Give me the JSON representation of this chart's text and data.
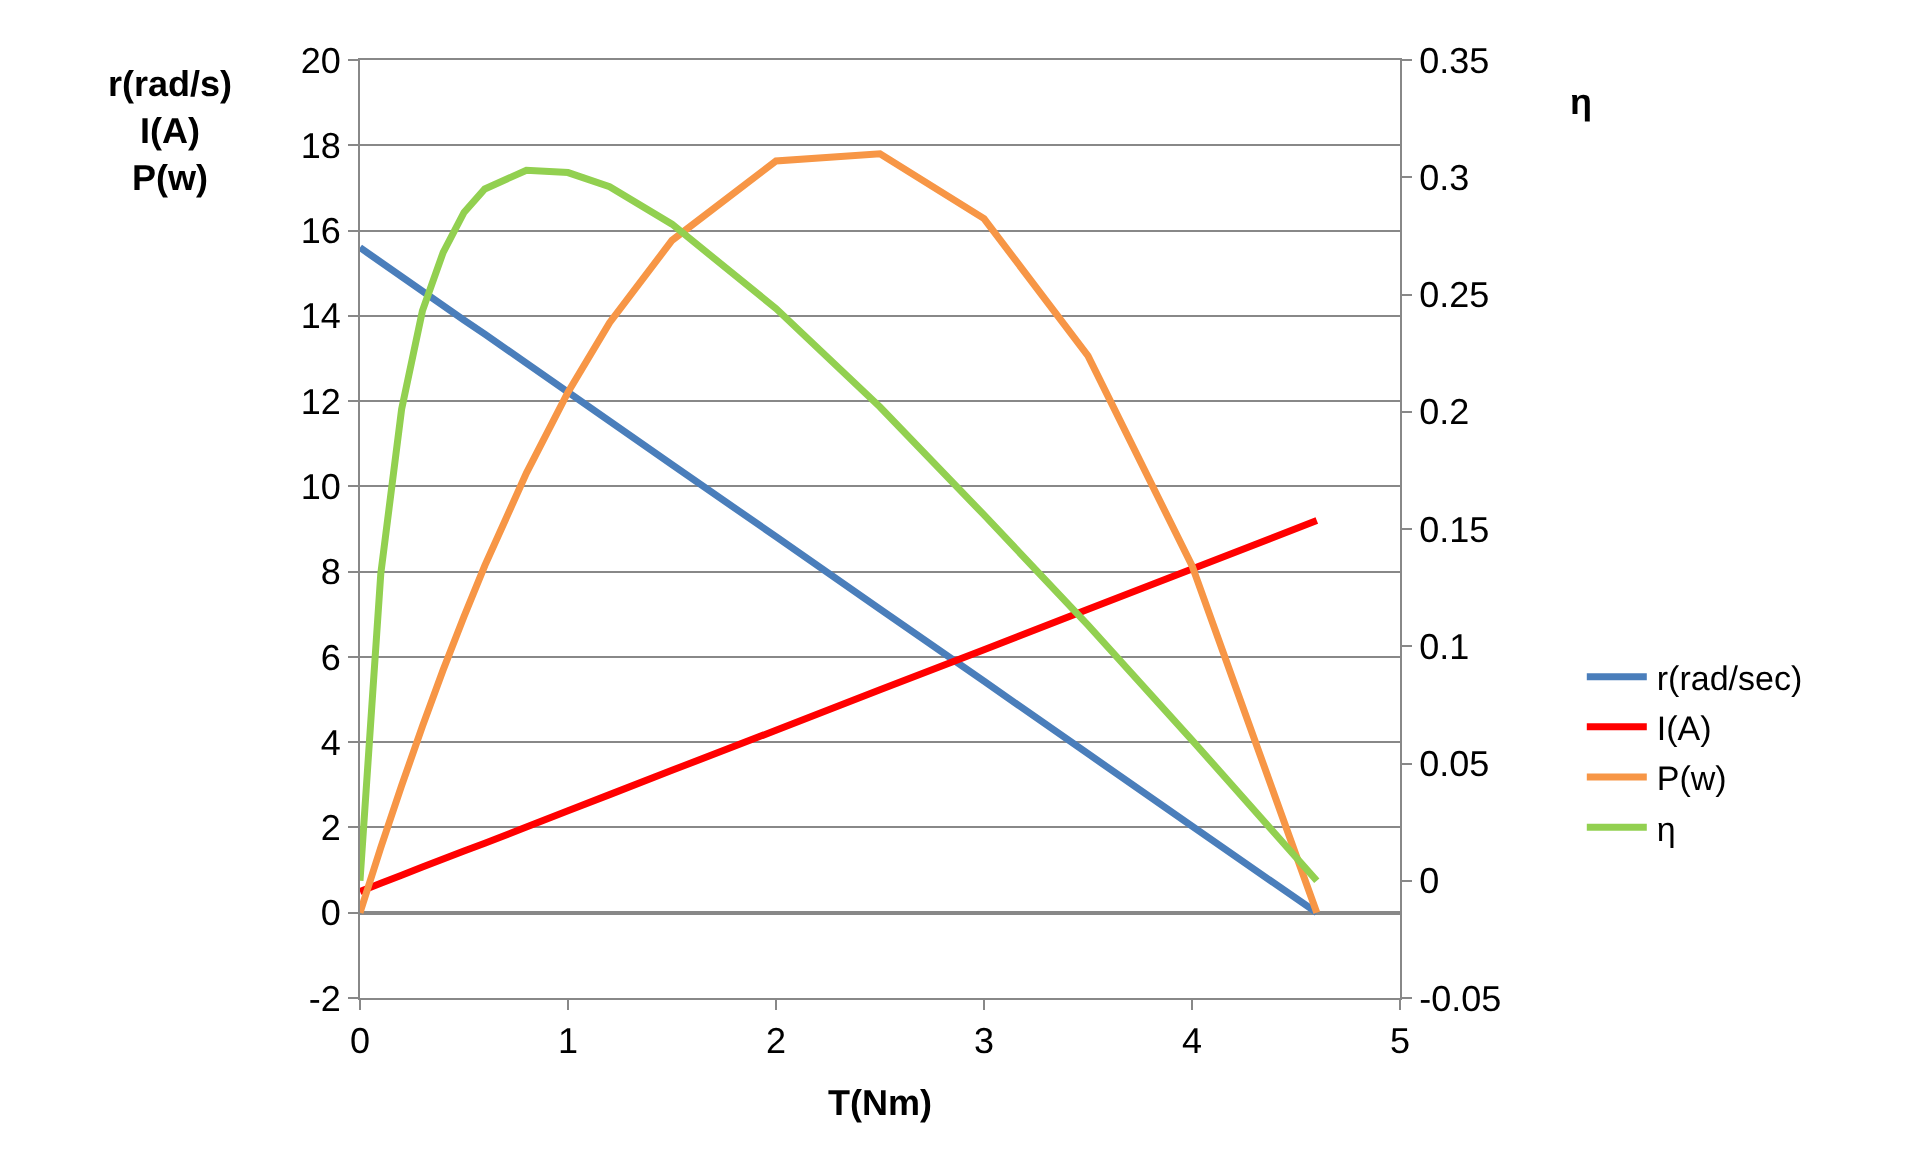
{
  "chart_data": {
    "type": "line",
    "xlabel": "T(Nm)",
    "ylabel": "r(rad/s)\nI(A)\nP(w)",
    "y2label": "η",
    "x": [
      0,
      0.1,
      0.2,
      0.3,
      0.4,
      0.5,
      0.6,
      0.8,
      1.0,
      1.2,
      1.5,
      2,
      2.5,
      3,
      3.5,
      4,
      4.6
    ],
    "series": [
      {
        "name": "r(rad/sec)",
        "color": "#4a7ebb",
        "values": [
          15.6,
          15.26,
          14.92,
          14.58,
          14.24,
          13.9,
          13.57,
          12.89,
          12.21,
          11.53,
          10.51,
          8.82,
          7.12,
          5.43,
          3.73,
          2.03,
          0
        ]
      },
      {
        "name": "I(A)",
        "color": "#ff0000",
        "values": [
          0.5,
          0.69,
          0.88,
          1.07,
          1.26,
          1.45,
          1.63,
          2.01,
          2.39,
          2.77,
          3.34,
          4.28,
          5.23,
          6.17,
          7.12,
          8.06,
          9.2
        ]
      },
      {
        "name": "P(w)",
        "color": "#f79646",
        "values": [
          0,
          1.53,
          2.98,
          4.37,
          5.7,
          6.95,
          8.14,
          10.31,
          12.21,
          13.84,
          15.77,
          17.63,
          17.8,
          16.28,
          13.06,
          8.14,
          0
        ]
      },
      {
        "name": "η",
        "color": "#92d050",
        "axis": "y2",
        "values": [
          0,
          0.131,
          0.201,
          0.243,
          0.268,
          0.285,
          0.295,
          0.303,
          0.302,
          0.296,
          0.28,
          0.244,
          0.202,
          0.156,
          0.109,
          0.06,
          0
        ]
      }
    ],
    "xlim": [
      0,
      5
    ],
    "xticks": [
      0,
      1,
      2,
      3,
      4,
      5
    ],
    "ylim": [
      -2,
      20
    ],
    "yticks": [
      -2,
      0,
      2,
      4,
      6,
      8,
      10,
      12,
      14,
      16,
      18,
      20
    ],
    "y2lim": [
      -0.05,
      0.35
    ],
    "y2ticks": [
      -0.05,
      0,
      0.05,
      0.1,
      0.15,
      0.2,
      0.25,
      0.3,
      0.35
    ],
    "grid": "y",
    "legend": "right",
    "marker": "none",
    "line_style": "solid"
  }
}
